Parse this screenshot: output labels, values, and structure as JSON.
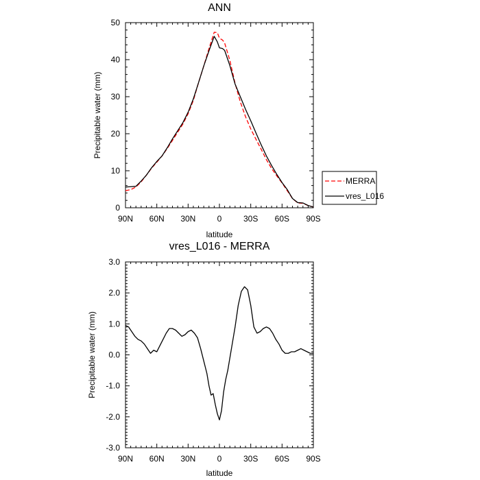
{
  "chart_data": [
    {
      "type": "line",
      "title": "ANN",
      "xlabel": "latitude",
      "ylabel": "Precipitable water (mm)",
      "xlim": [
        90,
        -90
      ],
      "ylim": [
        0,
        50
      ],
      "x_ticks": [
        {
          "value": 90,
          "label": "90N"
        },
        {
          "value": 60,
          "label": "60N"
        },
        {
          "value": 30,
          "label": "30N"
        },
        {
          "value": 0,
          "label": "0"
        },
        {
          "value": -30,
          "label": "30S"
        },
        {
          "value": -60,
          "label": "60S"
        },
        {
          "value": -90,
          "label": "90S"
        }
      ],
      "y_ticks": [
        {
          "value": 0,
          "label": "0"
        },
        {
          "value": 10,
          "label": "10"
        },
        {
          "value": 20,
          "label": "20"
        },
        {
          "value": 30,
          "label": "30"
        },
        {
          "value": 40,
          "label": "40"
        },
        {
          "value": 50,
          "label": "50"
        }
      ],
      "legend": {
        "placement": "right",
        "entries": [
          "MERRA",
          "vres_L016"
        ]
      },
      "series": [
        {
          "name": "MERRA",
          "color": "#ff0000",
          "style": "dashed",
          "x": [
            90,
            85,
            80,
            75,
            70,
            65,
            60,
            55,
            50,
            45,
            40,
            35,
            30,
            25,
            20,
            15,
            10,
            5,
            2,
            0,
            -3,
            -5,
            -10,
            -15,
            -20,
            -25,
            -30,
            -35,
            -40,
            -45,
            -50,
            -55,
            -60,
            -65,
            -70,
            -75,
            -80,
            -85,
            -90
          ],
          "y": [
            4.6,
            4.9,
            5.6,
            7.0,
            8.8,
            10.7,
            12.3,
            14.0,
            16.0,
            18.2,
            20.4,
            22.6,
            25.4,
            29.0,
            33.8,
            38.3,
            43.0,
            47.4,
            47.3,
            45.8,
            45.3,
            44.5,
            39.8,
            33.6,
            28.6,
            24.6,
            21.3,
            18.5,
            15.8,
            13.0,
            10.6,
            8.6,
            6.7,
            4.6,
            2.5,
            1.3,
            1.2,
            0.6,
            0.2
          ]
        },
        {
          "name": "vres_L016",
          "color": "#000000",
          "style": "solid",
          "x": [
            90,
            85,
            80,
            75,
            70,
            65,
            60,
            55,
            50,
            45,
            40,
            35,
            30,
            25,
            20,
            15,
            10,
            5,
            2,
            0,
            -3,
            -5,
            -10,
            -15,
            -20,
            -25,
            -30,
            -35,
            -40,
            -45,
            -50,
            -55,
            -60,
            -65,
            -70,
            -75,
            -80,
            -85,
            -90
          ],
          "y": [
            5.6,
            5.7,
            5.8,
            7.2,
            8.8,
            10.8,
            12.5,
            14.0,
            16.2,
            18.6,
            20.8,
            23.0,
            25.8,
            29.4,
            33.8,
            38.3,
            42.4,
            46.3,
            44.8,
            43.2,
            43.0,
            42.5,
            38.4,
            33.4,
            30.0,
            26.6,
            23.5,
            20.2,
            17.0,
            14.0,
            11.4,
            9.0,
            6.8,
            4.9,
            2.5,
            1.4,
            1.3,
            0.6,
            0.2
          ]
        }
      ]
    },
    {
      "type": "line",
      "title": "vres_L016 - MERRA",
      "xlabel": "latitude",
      "ylabel": "Precipitable water (mm)",
      "xlim": [
        90,
        -90
      ],
      "ylim": [
        -3.0,
        3.0
      ],
      "x_ticks": [
        {
          "value": 90,
          "label": "90N"
        },
        {
          "value": 60,
          "label": "60N"
        },
        {
          "value": 30,
          "label": "30N"
        },
        {
          "value": 0,
          "label": "0"
        },
        {
          "value": -30,
          "label": "30S"
        },
        {
          "value": -60,
          "label": "60S"
        },
        {
          "value": -90,
          "label": "90S"
        }
      ],
      "y_ticks": [
        {
          "value": -3.0,
          "label": "-3.0"
        },
        {
          "value": -2.0,
          "label": "-2.0"
        },
        {
          "value": -1.0,
          "label": "-1.0"
        },
        {
          "value": 0.0,
          "label": "0.0"
        },
        {
          "value": 1.0,
          "label": "1.0"
        },
        {
          "value": 2.0,
          "label": "2.0"
        },
        {
          "value": 3.0,
          "label": "3.0"
        }
      ],
      "series": [
        {
          "color": "#000000",
          "style": "solid",
          "x": [
            90,
            87,
            84,
            81,
            78,
            75,
            72,
            69,
            66,
            63,
            60,
            57,
            54,
            51,
            48,
            45,
            42,
            39,
            36,
            33,
            30,
            27,
            24,
            21,
            18,
            15,
            12,
            10,
            8,
            6,
            4,
            2,
            0,
            -2,
            -4,
            -6,
            -8,
            -10,
            -12,
            -15,
            -18,
            -21,
            -24,
            -27,
            -30,
            -33,
            -36,
            -39,
            -42,
            -45,
            -48,
            -51,
            -54,
            -57,
            -60,
            -63,
            -66,
            -69,
            -72,
            -75,
            -78,
            -81,
            -84,
            -87,
            -90
          ],
          "y": [
            0.95,
            0.9,
            0.75,
            0.6,
            0.5,
            0.45,
            0.35,
            0.2,
            0.05,
            0.15,
            0.1,
            0.3,
            0.5,
            0.7,
            0.85,
            0.85,
            0.8,
            0.7,
            0.6,
            0.65,
            0.75,
            0.8,
            0.7,
            0.55,
            0.2,
            -0.2,
            -0.6,
            -1.0,
            -1.3,
            -1.25,
            -1.6,
            -1.9,
            -2.1,
            -1.8,
            -1.2,
            -0.8,
            -0.5,
            -0.1,
            0.3,
            0.9,
            1.6,
            2.05,
            2.2,
            2.1,
            1.6,
            0.9,
            0.7,
            0.75,
            0.85,
            0.9,
            0.85,
            0.7,
            0.5,
            0.35,
            0.15,
            0.05,
            0.05,
            0.1,
            0.1,
            0.15,
            0.2,
            0.15,
            0.1,
            0.05,
            0.05
          ]
        }
      ]
    }
  ]
}
